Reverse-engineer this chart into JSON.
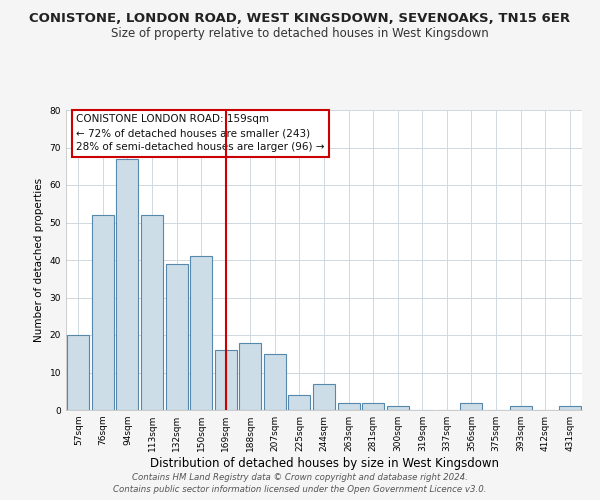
{
  "title": "CONISTONE, LONDON ROAD, WEST KINGSDOWN, SEVENOAKS, TN15 6ER",
  "subtitle": "Size of property relative to detached houses in West Kingsdown",
  "xlabel": "Distribution of detached houses by size in West Kingsdown",
  "ylabel": "Number of detached properties",
  "bar_labels": [
    "57sqm",
    "76sqm",
    "94sqm",
    "113sqm",
    "132sqm",
    "150sqm",
    "169sqm",
    "188sqm",
    "207sqm",
    "225sqm",
    "244sqm",
    "263sqm",
    "281sqm",
    "300sqm",
    "319sqm",
    "337sqm",
    "356sqm",
    "375sqm",
    "393sqm",
    "412sqm",
    "431sqm"
  ],
  "bar_values": [
    20,
    52,
    67,
    52,
    39,
    41,
    16,
    18,
    15,
    4,
    7,
    2,
    2,
    1,
    0,
    0,
    2,
    0,
    1,
    0,
    1
  ],
  "bar_color": "#ccdde8",
  "bar_edge_color": "#5588aa",
  "vline_x": 6,
  "vline_color": "#cc0000",
  "annotation_title": "CONISTONE LONDON ROAD: 159sqm",
  "annotation_line1": "← 72% of detached houses are smaller (243)",
  "annotation_line2": "28% of semi-detached houses are larger (96) →",
  "annotation_box_facecolor": "#ffffff",
  "annotation_box_edgecolor": "#cc0000",
  "ylim": [
    0,
    80
  ],
  "yticks": [
    0,
    10,
    20,
    30,
    40,
    50,
    60,
    70,
    80
  ],
  "footnote1": "Contains HM Land Registry data © Crown copyright and database right 2024.",
  "footnote2": "Contains public sector information licensed under the Open Government Licence v3.0.",
  "bg_color": "#f5f5f5",
  "plot_bg_color": "#ffffff",
  "grid_color": "#d0d8e0",
  "title_fontsize": 9.5,
  "subtitle_fontsize": 8.5,
  "xlabel_fontsize": 8.5,
  "ylabel_fontsize": 7.5,
  "tick_fontsize": 6.5,
  "annotation_fontsize": 7.5,
  "footnote_fontsize": 6.2
}
